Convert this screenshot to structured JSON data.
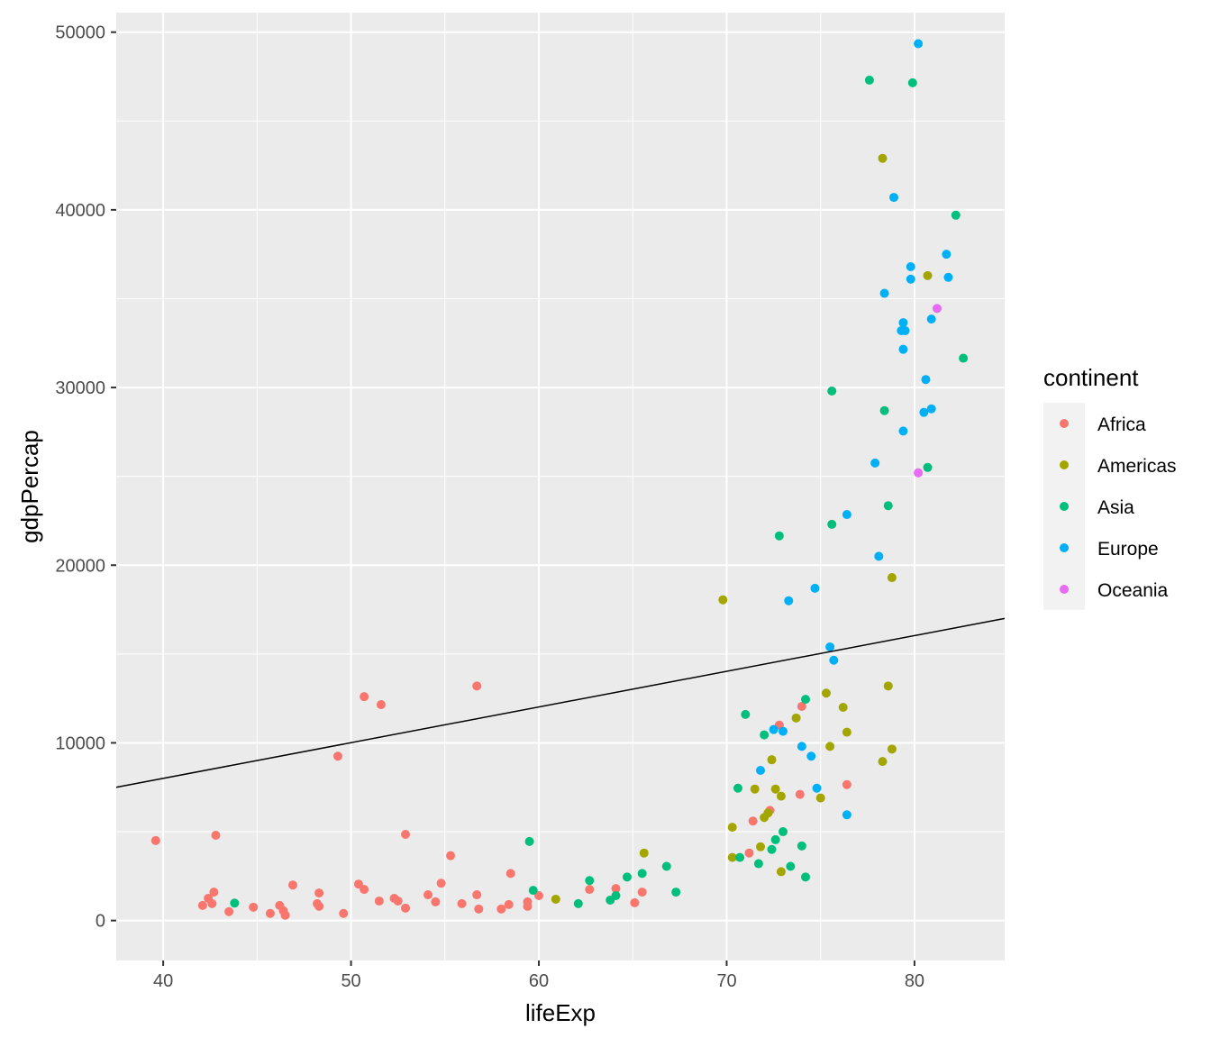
{
  "chart_data": {
    "type": "scatter",
    "title": "",
    "xlabel": "lifeExp",
    "ylabel": "gdpPercap",
    "xlim": [
      37.5,
      84.8
    ],
    "ylim": [
      -2250,
      51100
    ],
    "xticks": [
      40,
      50,
      60,
      70,
      80
    ],
    "yticks": [
      0,
      10000,
      20000,
      30000,
      40000,
      50000
    ],
    "xtick_labels": [
      "40",
      "50",
      "60",
      "70",
      "80"
    ],
    "ytick_labels": [
      "0",
      "10000",
      "20000",
      "30000",
      "40000",
      "50000"
    ],
    "grid": true,
    "legend": {
      "title": "continent",
      "position": "right"
    },
    "trend_line": {
      "type": "linear",
      "color": "#000000",
      "x": [
        37.5,
        84.8
      ],
      "y": [
        7500,
        17000
      ]
    },
    "series": [
      {
        "name": "Africa",
        "color": "#F8766D",
        "points": [
          [
            39.6,
            4500
          ],
          [
            42.1,
            850
          ],
          [
            42.4,
            1250
          ],
          [
            42.6,
            950
          ],
          [
            42.7,
            1600
          ],
          [
            42.8,
            4800
          ],
          [
            43.5,
            500
          ],
          [
            44.8,
            750
          ],
          [
            45.7,
            400
          ],
          [
            46.2,
            850
          ],
          [
            46.4,
            550
          ],
          [
            46.5,
            300
          ],
          [
            46.9,
            2000
          ],
          [
            48.2,
            950
          ],
          [
            48.3,
            800
          ],
          [
            48.3,
            1550
          ],
          [
            49.3,
            9250
          ],
          [
            49.6,
            400
          ],
          [
            50.4,
            2050
          ],
          [
            50.7,
            1750
          ],
          [
            50.7,
            12600
          ],
          [
            51.5,
            1100
          ],
          [
            51.6,
            12150
          ],
          [
            52.3,
            1250
          ],
          [
            52.5,
            1100
          ],
          [
            52.9,
            700
          ],
          [
            52.9,
            4850
          ],
          [
            54.1,
            1450
          ],
          [
            54.5,
            1050
          ],
          [
            54.8,
            2100
          ],
          [
            55.3,
            3650
          ],
          [
            55.9,
            950
          ],
          [
            56.7,
            1450
          ],
          [
            56.8,
            650
          ],
          [
            56.7,
            13200
          ],
          [
            58.0,
            650
          ],
          [
            58.4,
            900
          ],
          [
            58.5,
            2650
          ],
          [
            59.4,
            800
          ],
          [
            59.4,
            1050
          ],
          [
            60.0,
            1400
          ],
          [
            62.7,
            1750
          ],
          [
            64.1,
            1800
          ],
          [
            65.1,
            1000
          ],
          [
            65.5,
            1600
          ],
          [
            71.2,
            3800
          ],
          [
            71.4,
            5600
          ],
          [
            72.3,
            6200
          ],
          [
            72.8,
            11000
          ],
          [
            73.9,
            7100
          ],
          [
            74.0,
            12050
          ],
          [
            76.4,
            7650
          ]
        ]
      },
      {
        "name": "Americas",
        "color": "#A3A500",
        "points": [
          [
            60.9,
            1200
          ],
          [
            65.6,
            3800
          ],
          [
            69.8,
            18050
          ],
          [
            70.3,
            3550
          ],
          [
            70.3,
            5250
          ],
          [
            71.5,
            7400
          ],
          [
            71.8,
            4150
          ],
          [
            72.0,
            5800
          ],
          [
            72.2,
            6050
          ],
          [
            72.4,
            9050
          ],
          [
            72.6,
            7400
          ],
          [
            72.9,
            7000
          ],
          [
            72.9,
            2750
          ],
          [
            73.7,
            11400
          ],
          [
            75.0,
            6900
          ],
          [
            75.3,
            12800
          ],
          [
            75.5,
            9800
          ],
          [
            76.2,
            12000
          ],
          [
            76.4,
            10600
          ],
          [
            78.3,
            42900
          ],
          [
            78.3,
            8950
          ],
          [
            78.6,
            13200
          ],
          [
            78.8,
            19300
          ],
          [
            78.8,
            9650
          ],
          [
            80.7,
            36300
          ]
        ]
      },
      {
        "name": "Asia",
        "color": "#00BF7D",
        "points": [
          [
            43.8,
            980
          ],
          [
            59.5,
            4450
          ],
          [
            59.7,
            1700
          ],
          [
            62.1,
            950
          ],
          [
            62.7,
            2250
          ],
          [
            63.8,
            1150
          ],
          [
            64.1,
            1400
          ],
          [
            64.7,
            2450
          ],
          [
            65.5,
            2650
          ],
          [
            66.8,
            3050
          ],
          [
            67.3,
            1600
          ],
          [
            70.6,
            7450
          ],
          [
            70.7,
            3550
          ],
          [
            71.0,
            11600
          ],
          [
            71.7,
            3200
          ],
          [
            72.0,
            10450
          ],
          [
            72.4,
            4000
          ],
          [
            72.6,
            4550
          ],
          [
            72.8,
            21650
          ],
          [
            73.0,
            5000
          ],
          [
            73.4,
            3050
          ],
          [
            74.0,
            4200
          ],
          [
            74.2,
            2450
          ],
          [
            74.2,
            12450
          ],
          [
            75.6,
            22300
          ],
          [
            75.6,
            29800
          ],
          [
            77.6,
            47300
          ],
          [
            78.4,
            28700
          ],
          [
            78.6,
            23350
          ],
          [
            79.9,
            47150
          ],
          [
            80.7,
            25500
          ],
          [
            82.2,
            39700
          ],
          [
            82.6,
            31650
          ]
        ]
      },
      {
        "name": "Europe",
        "color": "#00B0F6",
        "points": [
          [
            71.8,
            8450
          ],
          [
            72.5,
            10750
          ],
          [
            73.0,
            10650
          ],
          [
            73.3,
            18000
          ],
          [
            74.0,
            9800
          ],
          [
            74.5,
            9250
          ],
          [
            74.7,
            18700
          ],
          [
            74.8,
            7450
          ],
          [
            75.5,
            15400
          ],
          [
            75.7,
            14650
          ],
          [
            76.4,
            5950
          ],
          [
            76.4,
            22850
          ],
          [
            77.9,
            25750
          ],
          [
            78.1,
            20500
          ],
          [
            78.4,
            35300
          ],
          [
            78.9,
            40700
          ],
          [
            79.3,
            33200
          ],
          [
            79.4,
            33650
          ],
          [
            79.4,
            32150
          ],
          [
            79.4,
            27550
          ],
          [
            79.5,
            33200
          ],
          [
            79.8,
            36800
          ],
          [
            79.8,
            36100
          ],
          [
            80.2,
            49350
          ],
          [
            80.5,
            28600
          ],
          [
            80.6,
            30450
          ],
          [
            80.9,
            33850
          ],
          [
            80.9,
            28800
          ],
          [
            81.7,
            37500
          ],
          [
            81.8,
            36200
          ]
        ]
      },
      {
        "name": "Oceania",
        "color": "#E76BF3",
        "points": [
          [
            80.2,
            25200
          ],
          [
            81.2,
            34450
          ]
        ]
      }
    ]
  }
}
